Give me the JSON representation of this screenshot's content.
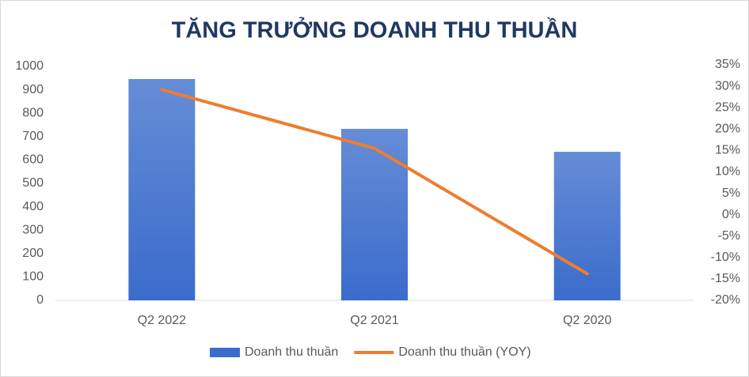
{
  "chart_data": {
    "type": "combo",
    "title": "TĂNG TRƯỞNG DOANH THU THUẦN",
    "categories": [
      "Q2 2022",
      "Q2 2021",
      "Q2 2020"
    ],
    "series": [
      {
        "name": "Doanh thu thuần",
        "type": "bar",
        "color": "#3a6ccb",
        "values": [
          946,
          733,
          635
        ]
      },
      {
        "name": "Doanh thu thuần (YOY)",
        "type": "line",
        "axis": "y2",
        "color": "#ed7d31",
        "values": [
          29.2,
          15.5,
          -13.8
        ]
      }
    ],
    "ylim": [
      0,
      1000
    ],
    "yticks": [
      0,
      100,
      200,
      300,
      400,
      500,
      600,
      700,
      800,
      900,
      1000
    ],
    "y2lim": [
      -20,
      35
    ],
    "y2ticks": [
      {
        "value": -20,
        "label": "-20%"
      },
      {
        "value": -15,
        "label": "-15%"
      },
      {
        "value": -10,
        "label": "-10%"
      },
      {
        "value": -5,
        "label": "-5%"
      },
      {
        "value": 0,
        "label": "0%"
      },
      {
        "value": 5,
        "label": "5%"
      },
      {
        "value": 10,
        "label": "10%"
      },
      {
        "value": 15,
        "label": "15%"
      },
      {
        "value": 20,
        "label": "20%"
      },
      {
        "value": 25,
        "label": "25%"
      },
      {
        "value": 30,
        "label": "30%"
      },
      {
        "value": 35,
        "label": "35%"
      }
    ],
    "grid": false,
    "legend": "bottom"
  }
}
